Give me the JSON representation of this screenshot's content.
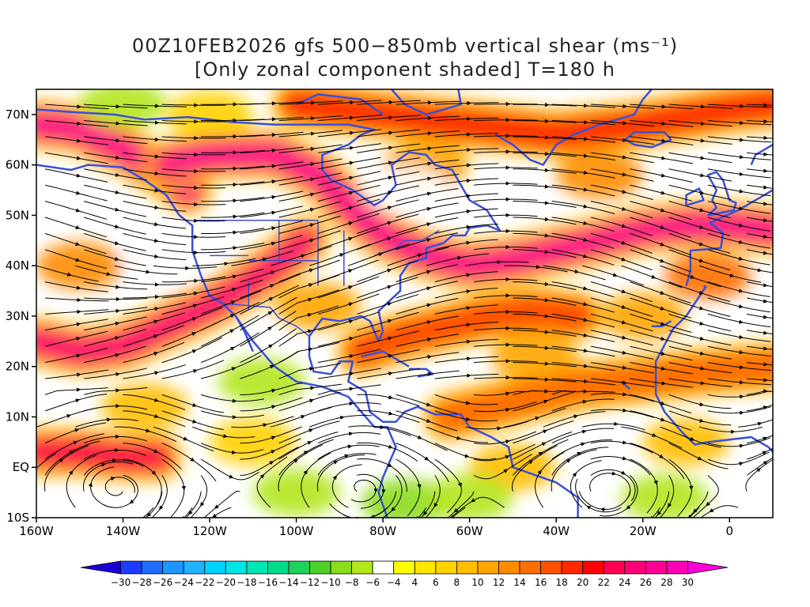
{
  "header": {
    "title_line1": "00Z10FEB2026 gfs 500−850mb vertical shear (ms⁻¹)",
    "title_line2": "[Only zonal component shaded] T=180 h"
  },
  "map": {
    "lon_range": [
      -160,
      10
    ],
    "lat_range": [
      -10,
      75
    ],
    "lon_ticks": [
      {
        "lon": -160,
        "label": "160W"
      },
      {
        "lon": -140,
        "label": "140W"
      },
      {
        "lon": -120,
        "label": "120W"
      },
      {
        "lon": -100,
        "label": "100W"
      },
      {
        "lon": -80,
        "label": "80W"
      },
      {
        "lon": -60,
        "label": "60W"
      },
      {
        "lon": -40,
        "label": "40W"
      },
      {
        "lon": -20,
        "label": "20W"
      },
      {
        "lon": 0,
        "label": "0"
      }
    ],
    "lat_ticks": [
      {
        "lat": 70,
        "label": "70N"
      },
      {
        "lat": 60,
        "label": "60N"
      },
      {
        "lat": 50,
        "label": "50N"
      },
      {
        "lat": 40,
        "label": "40N"
      },
      {
        "lat": 30,
        "label": "30N"
      },
      {
        "lat": 20,
        "label": "20N"
      },
      {
        "lat": 10,
        "label": "10N"
      },
      {
        "lat": 0,
        "label": "EQ"
      },
      {
        "lat": -10,
        "label": "10S"
      }
    ],
    "coastline_color": "#3a4fd8",
    "shear_bands": [
      {
        "points": [
          [
            -160,
            68
          ],
          [
            -150,
            67
          ],
          [
            -140,
            63
          ],
          [
            -130,
            58
          ],
          [
            -125,
            55
          ]
        ],
        "value": 26
      },
      {
        "points": [
          [
            -130,
            60
          ],
          [
            -120,
            62
          ],
          [
            -105,
            62
          ],
          [
            -95,
            58
          ],
          [
            -88,
            52
          ],
          [
            -80,
            46
          ],
          [
            -70,
            42
          ],
          [
            -60,
            40
          ],
          [
            -50,
            41
          ],
          [
            -40,
            43
          ],
          [
            -30,
            45
          ],
          [
            -20,
            47
          ],
          [
            -10,
            48
          ],
          [
            0,
            48
          ],
          [
            10,
            47
          ]
        ],
        "value": 26
      },
      {
        "points": [
          [
            -160,
            25
          ],
          [
            -150,
            23
          ],
          [
            -140,
            24
          ],
          [
            -130,
            28
          ],
          [
            -120,
            32
          ],
          [
            -112,
            36
          ],
          [
            -105,
            40
          ],
          [
            -98,
            45
          ]
        ],
        "value": 24
      },
      {
        "points": [
          [
            -160,
            3
          ],
          [
            -150,
            3
          ],
          [
            -140,
            2
          ],
          [
            -132,
            2
          ]
        ],
        "value": 22
      },
      {
        "points": [
          [
            -85,
            23
          ],
          [
            -75,
            26
          ],
          [
            -65,
            28
          ],
          [
            -55,
            30
          ],
          [
            -45,
            31
          ],
          [
            -35,
            30
          ]
        ],
        "value": 16
      },
      {
        "points": [
          [
            -65,
            10
          ],
          [
            -55,
            12
          ],
          [
            -45,
            14
          ],
          [
            -35,
            16
          ],
          [
            -25,
            17
          ],
          [
            -15,
            18
          ],
          [
            -5,
            19
          ],
          [
            10,
            20
          ]
        ],
        "value": 14
      },
      {
        "points": [
          [
            -100,
            72
          ],
          [
            -80,
            70
          ],
          [
            -60,
            68
          ],
          [
            -40,
            66
          ],
          [
            -20,
            68
          ],
          [
            0,
            71
          ],
          [
            10,
            72
          ]
        ],
        "value": 18
      }
    ],
    "colorbar": {
      "levels": [
        -30,
        -28,
        -26,
        -24,
        -22,
        -20,
        -18,
        -16,
        -14,
        -12,
        -10,
        -8,
        -6,
        -4,
        4,
        6,
        8,
        10,
        12,
        14,
        16,
        18,
        20,
        22,
        24,
        26,
        28,
        30
      ],
      "colors": [
        "#1a00d8",
        "#1e3cff",
        "#1e6eff",
        "#1e96ff",
        "#1eb4ff",
        "#00d2ff",
        "#00e6e6",
        "#00e6b4",
        "#00dc8c",
        "#1ed25a",
        "#50d228",
        "#8cdc1e",
        "#b4e61e",
        "#ffffff",
        "#ffff00",
        "#ffe600",
        "#ffd200",
        "#ffbe00",
        "#ffa500",
        "#ff8c00",
        "#ff6e00",
        "#ff5000",
        "#ff2800",
        "#ff0000",
        "#ff0050",
        "#ff0078",
        "#ff0096",
        "#ff00b4",
        "#ff00dc"
      ]
    }
  }
}
